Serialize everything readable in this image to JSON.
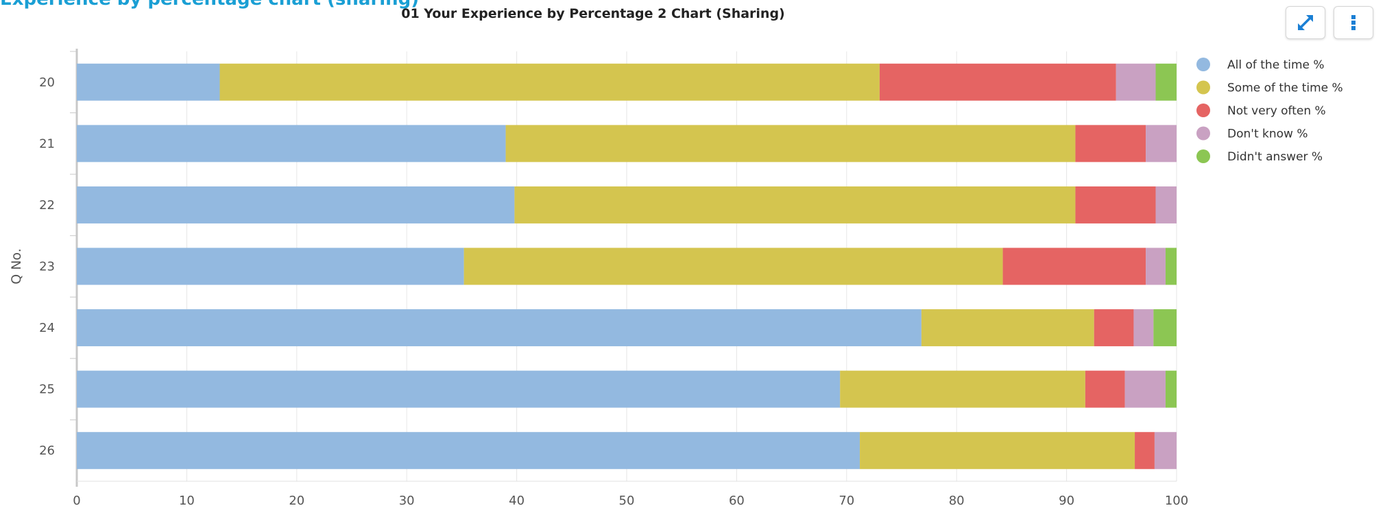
{
  "header": {
    "title": "Experience by percentage chart (sharing)"
  },
  "toolbar": {
    "expand_icon": "expand-arrows-icon",
    "menu_icon": "vertical-dots-icon",
    "accent": "#1a7fd4"
  },
  "chart_data": {
    "type": "bar",
    "orientation": "horizontal",
    "stacked": true,
    "title": "01 Your Experience by Percentage 2 Chart (Sharing)",
    "xlabel": "",
    "ylabel": "Q No.",
    "xlim": [
      0,
      100
    ],
    "xticks": [
      0,
      10,
      20,
      30,
      40,
      50,
      60,
      70,
      80,
      90,
      100
    ],
    "grid": "vertical",
    "legend_position": "right",
    "categories": [
      "20",
      "21",
      "22",
      "23",
      "24",
      "25",
      "26"
    ],
    "series": [
      {
        "name": "All of the time %",
        "color": "#93b9e0",
        "values": [
          13,
          39,
          39.8,
          35.2,
          76.8,
          69.4,
          71.2
        ]
      },
      {
        "name": "Some of the time %",
        "color": "#d4c54f",
        "values": [
          60,
          51.8,
          51,
          49,
          15.7,
          22.3,
          25
        ]
      },
      {
        "name": "Not very often %",
        "color": "#e56463",
        "values": [
          21.5,
          6.4,
          7.3,
          13,
          3.6,
          3.6,
          1.8
        ]
      },
      {
        "name": "Don't know %",
        "color": "#c9a1c2",
        "values": [
          3.6,
          2.8,
          1.9,
          1.8,
          1.8,
          3.7,
          2
        ]
      },
      {
        "name": "Didn't answer %",
        "color": "#8cc653",
        "values": [
          1.9,
          0,
          0,
          1,
          2.1,
          1,
          0
        ]
      }
    ]
  }
}
